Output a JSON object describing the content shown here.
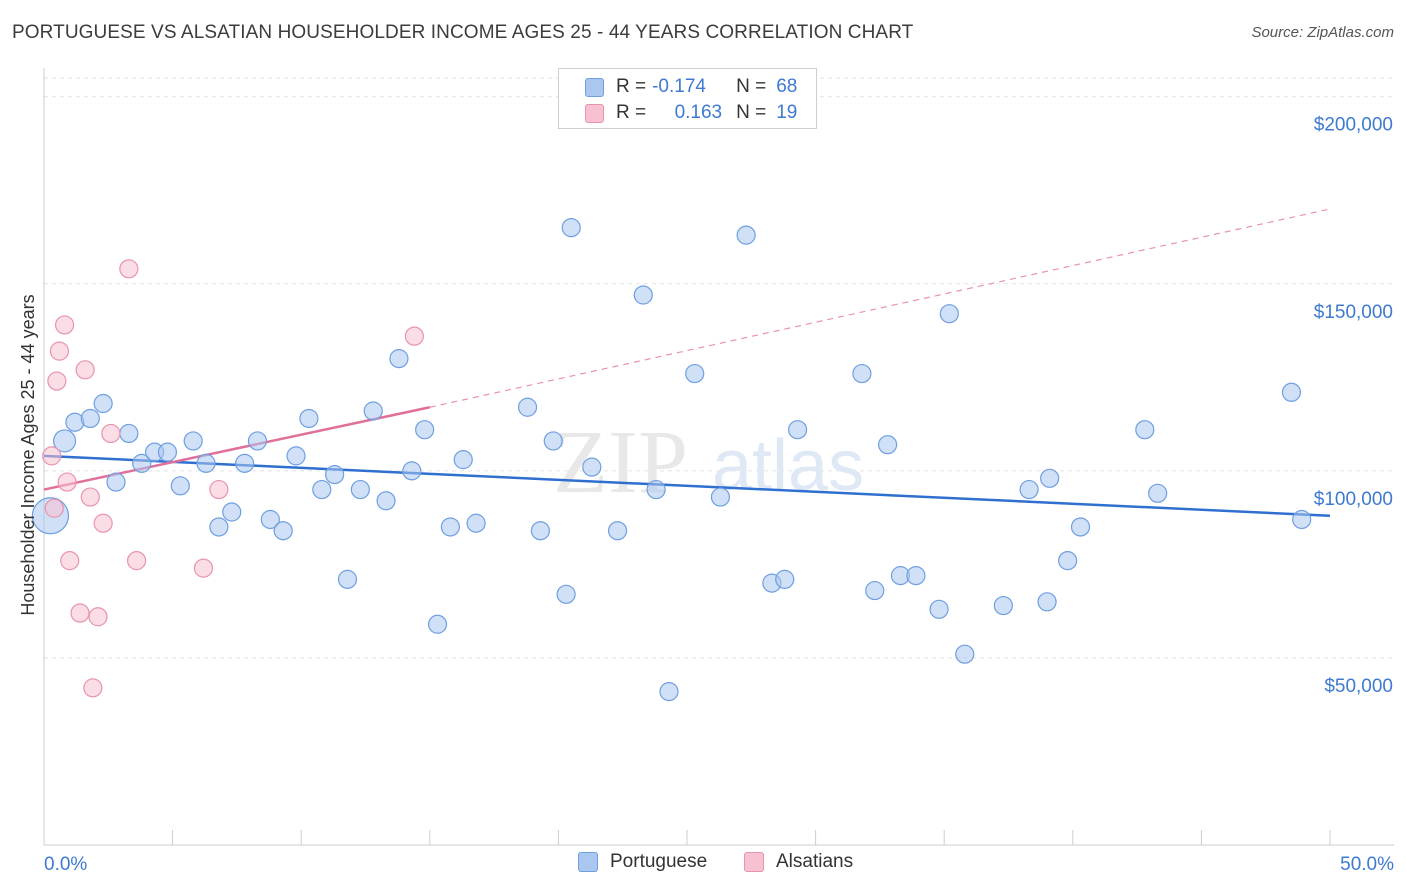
{
  "title": "PORTUGUESE VS ALSATIAN HOUSEHOLDER INCOME AGES 25 - 44 YEARS CORRELATION CHART",
  "source": "Source: ZipAtlas.com",
  "watermark": {
    "zip": "ZIP",
    "atlas": "atlas"
  },
  "legend_stats": [
    {
      "r_label": "R =",
      "r_value": "-0.174",
      "n_label": "N =",
      "n_value": "68",
      "color": "#a9c7ef",
      "border": "#6f9fe0"
    },
    {
      "r_label": "R =",
      "r_value": "0.163",
      "n_label": "N =",
      "n_value": "19",
      "color": "#f7c1d1",
      "border": "#e893ae"
    }
  ],
  "chart_data": {
    "type": "scatter",
    "title": "PORTUGUESE VS ALSATIAN HOUSEHOLDER INCOME AGES 25 - 44 YEARS CORRELATION CHART",
    "xlabel": "",
    "ylabel": "Householder Income Ages 25 - 44 years",
    "xlim": [
      0,
      50
    ],
    "ylim": [
      0,
      205000
    ],
    "x_tick_labels": [
      "0.0%",
      "50.0%"
    ],
    "y_ticks": [
      50000,
      100000,
      150000,
      200000
    ],
    "y_tick_labels": [
      "$50,000",
      "$100,000",
      "$150,000",
      "$200,000"
    ],
    "grid": true,
    "legend_position": "bottom-center",
    "series": [
      {
        "name": "Portuguese",
        "color": "#a9c7ef",
        "stroke": "#6f9fe0",
        "trend": {
          "x": [
            0,
            50
          ],
          "y": [
            104000,
            88000
          ],
          "color": "#2e6fd0"
        },
        "points": [
          [
            0.8,
            108000
          ],
          [
            1.2,
            113000
          ],
          [
            1.8,
            114000
          ],
          [
            2.3,
            118000
          ],
          [
            2.8,
            97000
          ],
          [
            3.3,
            110000
          ],
          [
            3.8,
            102000
          ],
          [
            4.3,
            105000
          ],
          [
            4.8,
            105000
          ],
          [
            5.3,
            96000
          ],
          [
            5.8,
            108000
          ],
          [
            6.3,
            102000
          ],
          [
            6.8,
            85000
          ],
          [
            7.3,
            89000
          ],
          [
            7.8,
            102000
          ],
          [
            8.3,
            108000
          ],
          [
            8.8,
            87000
          ],
          [
            9.3,
            84000
          ],
          [
            9.8,
            104000
          ],
          [
            10.3,
            114000
          ],
          [
            10.8,
            95000
          ],
          [
            11.3,
            99000
          ],
          [
            11.8,
            71000
          ],
          [
            12.3,
            95000
          ],
          [
            12.8,
            116000
          ],
          [
            13.3,
            92000
          ],
          [
            13.8,
            130000
          ],
          [
            14.3,
            100000
          ],
          [
            14.8,
            111000
          ],
          [
            15.3,
            59000
          ],
          [
            15.8,
            85000
          ],
          [
            16.3,
            103000
          ],
          [
            16.8,
            86000
          ],
          [
            18.8,
            117000
          ],
          [
            19.3,
            84000
          ],
          [
            19.8,
            108000
          ],
          [
            20.3,
            67000
          ],
          [
            20.5,
            165000
          ],
          [
            21.3,
            101000
          ],
          [
            22.3,
            84000
          ],
          [
            23.3,
            147000
          ],
          [
            23.8,
            95000
          ],
          [
            24.3,
            41000
          ],
          [
            25.3,
            126000
          ],
          [
            26.3,
            93000
          ],
          [
            27.3,
            163000
          ],
          [
            28.3,
            70000
          ],
          [
            28.8,
            71000
          ],
          [
            29.3,
            111000
          ],
          [
            31.8,
            126000
          ],
          [
            32.3,
            68000
          ],
          [
            32.8,
            107000
          ],
          [
            33.3,
            72000
          ],
          [
            33.9,
            72000
          ],
          [
            34.8,
            63000
          ],
          [
            35.2,
            142000
          ],
          [
            35.8,
            51000
          ],
          [
            37.3,
            64000
          ],
          [
            38.3,
            95000
          ],
          [
            39.0,
            65000
          ],
          [
            39.1,
            98000
          ],
          [
            39.8,
            76000
          ],
          [
            40.3,
            85000
          ],
          [
            42.8,
            111000
          ],
          [
            43.3,
            94000
          ],
          [
            48.5,
            121000
          ],
          [
            48.9,
            87000
          ],
          [
            0.25,
            88000
          ]
        ],
        "sizes": [
          11,
          9,
          9,
          9,
          9,
          9,
          9,
          9,
          9,
          9,
          9,
          9,
          9,
          9,
          9,
          9,
          9,
          9,
          9,
          9,
          9,
          9,
          9,
          9,
          9,
          9,
          9,
          9,
          9,
          9,
          9,
          9,
          9,
          9,
          9,
          9,
          9,
          9,
          9,
          9,
          9,
          9,
          9,
          9,
          9,
          9,
          9,
          9,
          9,
          9,
          9,
          9,
          9,
          9,
          9,
          9,
          9,
          9,
          9,
          9,
          9,
          9,
          9,
          9,
          9,
          9,
          9,
          18
        ]
      },
      {
        "name": "Alsatians",
        "color": "#f7c1d1",
        "stroke": "#e893ae",
        "trend": {
          "x": [
            0,
            15
          ],
          "y": [
            95000,
            117000
          ],
          "color": "#e0709a",
          "dashed_to": [
            50,
            170000
          ]
        },
        "points": [
          [
            0.3,
            104000
          ],
          [
            0.4,
            90000
          ],
          [
            0.5,
            124000
          ],
          [
            0.6,
            132000
          ],
          [
            0.8,
            139000
          ],
          [
            0.9,
            97000
          ],
          [
            1.0,
            76000
          ],
          [
            1.4,
            62000
          ],
          [
            1.6,
            127000
          ],
          [
            1.8,
            93000
          ],
          [
            1.9,
            42000
          ],
          [
            2.1,
            61000
          ],
          [
            2.3,
            86000
          ],
          [
            2.6,
            110000
          ],
          [
            3.3,
            154000
          ],
          [
            3.6,
            76000
          ],
          [
            6.2,
            74000
          ],
          [
            6.8,
            95000
          ],
          [
            14.4,
            136000
          ]
        ],
        "sizes": [
          9,
          9,
          9,
          9,
          9,
          9,
          9,
          9,
          9,
          9,
          9,
          9,
          9,
          9,
          9,
          9,
          9,
          9,
          9
        ]
      }
    ]
  }
}
